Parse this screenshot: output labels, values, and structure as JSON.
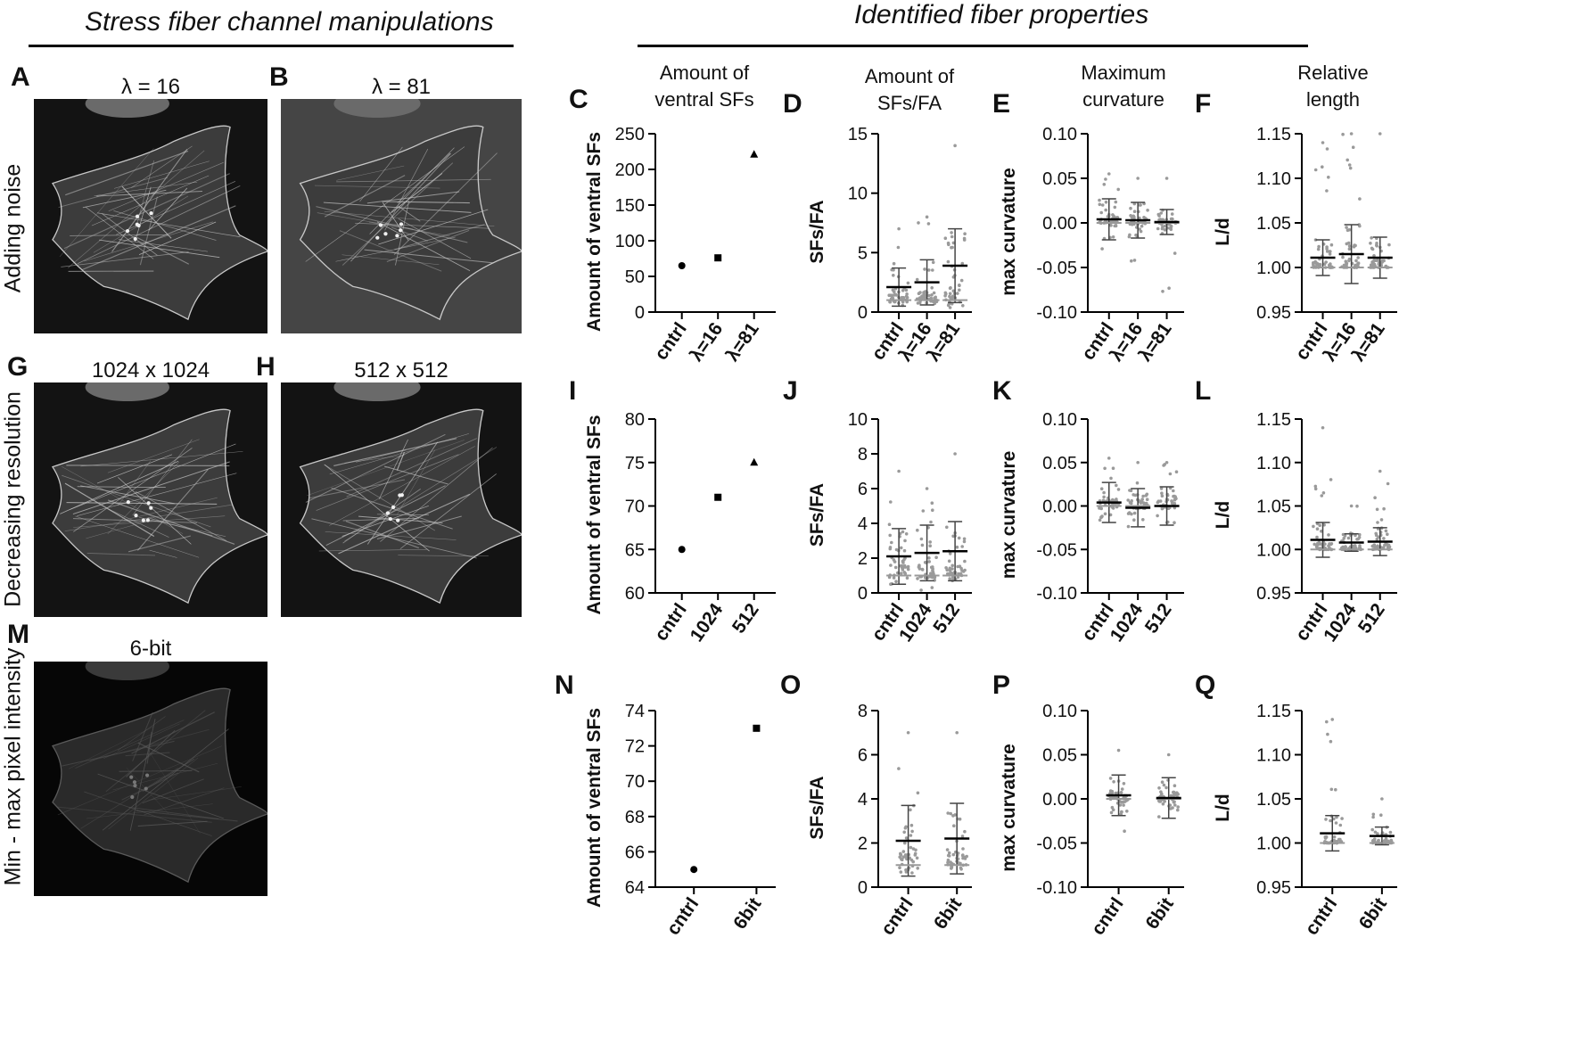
{
  "headers": {
    "left": "Stress fiber channel manipulations",
    "right": "Identified fiber properties"
  },
  "image_panels": [
    {
      "letter": "A",
      "label": "λ = 16"
    },
    {
      "letter": "B",
      "label": "λ = 81"
    },
    {
      "letter": "G",
      "label": "1024 x 1024"
    },
    {
      "letter": "H",
      "label": "512 x 512"
    },
    {
      "letter": "M",
      "label": "6-bit"
    }
  ],
  "row_labels": [
    "Adding noise",
    "Decreasing resolution",
    "Min - max pixel intensity"
  ],
  "column_titles": [
    "Amount of\nventral SFs",
    "Amount of\nSFs/FA",
    "Maximum\ncurvature",
    "Relative\nlength"
  ],
  "colors": {
    "axis": "#000000",
    "scatter_points": "#9a9a9a",
    "mean_line": "#000000",
    "median_line": "#999999",
    "background": "#ffffff",
    "micrograph": "#131313"
  },
  "chart_data": [
    {
      "panel": "C",
      "type": "scatter",
      "ylabel": "Amount of ventral SFs",
      "categories": [
        "cntrl",
        "λ=16",
        "λ=81"
      ],
      "ylim": [
        0,
        250
      ],
      "yticks": [
        0,
        50,
        100,
        150,
        200,
        250
      ],
      "values": [
        65,
        76,
        221
      ],
      "markers": [
        "circle",
        "square",
        "triangle"
      ]
    },
    {
      "panel": "D",
      "type": "scatter",
      "ylabel": "SFs/FA",
      "categories": [
        "cntrl",
        "λ=16",
        "λ=81"
      ],
      "ylim": [
        0,
        15
      ],
      "yticks": [
        0,
        5,
        10,
        15
      ],
      "mean": [
        2.1,
        2.5,
        3.9
      ],
      "sd": [
        1.6,
        1.9,
        3.1
      ],
      "median": [
        1,
        1,
        1
      ],
      "range": [
        [
          0,
          7
        ],
        [
          0,
          8
        ],
        [
          0,
          14
        ]
      ]
    },
    {
      "panel": "E",
      "type": "scatter",
      "ylabel": "max curvature",
      "categories": [
        "cntrl",
        "λ=16",
        "λ=81"
      ],
      "ylim": [
        -0.1,
        0.1
      ],
      "yticks": [
        -0.1,
        -0.05,
        0.0,
        0.05,
        0.1
      ],
      "mean": [
        0.004,
        0.003,
        0.001
      ],
      "sd": [
        0.023,
        0.02,
        0.014
      ],
      "median": [
        0.0,
        0.0,
        0.0
      ],
      "range": [
        [
          -0.05,
          0.055
        ],
        [
          -0.05,
          0.05
        ],
        [
          -0.09,
          0.05
        ]
      ]
    },
    {
      "panel": "F",
      "type": "scatter",
      "ylabel": "L/d",
      "categories": [
        "cntrl",
        "λ=16",
        "λ=81"
      ],
      "ylim": [
        0.95,
        1.15
      ],
      "yticks": [
        0.95,
        1.0,
        1.05,
        1.1,
        1.15
      ],
      "mean": [
        1.011,
        1.015,
        1.011
      ],
      "sd": [
        0.02,
        0.033,
        0.023
      ],
      "median": [
        1.0,
        1.0,
        1.0
      ],
      "range": [
        [
          1.0,
          1.14
        ],
        [
          1.0,
          1.15
        ],
        [
          1.0,
          1.15
        ]
      ]
    },
    {
      "panel": "I",
      "type": "scatter",
      "ylabel": "Amount of ventral SFs",
      "categories": [
        "cntrl",
        "1024",
        "512"
      ],
      "ylim": [
        60,
        80
      ],
      "yticks": [
        60,
        65,
        70,
        75,
        80
      ],
      "values": [
        65,
        71,
        75
      ],
      "markers": [
        "circle",
        "square",
        "triangle"
      ]
    },
    {
      "panel": "J",
      "type": "scatter",
      "ylabel": "SFs/FA",
      "categories": [
        "cntrl",
        "1024",
        "512"
      ],
      "ylim": [
        0,
        10
      ],
      "yticks": [
        0,
        2,
        4,
        6,
        8,
        10
      ],
      "mean": [
        2.1,
        2.3,
        2.4
      ],
      "sd": [
        1.6,
        1.6,
        1.7
      ],
      "median": [
        1,
        1,
        1
      ],
      "range": [
        [
          0,
          7
        ],
        [
          0,
          6
        ],
        [
          0,
          8
        ]
      ]
    },
    {
      "panel": "K",
      "type": "scatter",
      "ylabel": "max curvature",
      "categories": [
        "cntrl",
        "1024",
        "512"
      ],
      "ylim": [
        -0.1,
        0.1
      ],
      "yticks": [
        -0.1,
        -0.05,
        0.0,
        0.05,
        0.1
      ],
      "mean": [
        0.004,
        -0.002,
        0.0
      ],
      "sd": [
        0.023,
        0.022,
        0.022
      ],
      "median": [
        0.0,
        0.0,
        0.0
      ],
      "range": [
        [
          -0.05,
          0.055
        ],
        [
          -0.05,
          0.05
        ],
        [
          -0.05,
          0.05
        ]
      ]
    },
    {
      "panel": "L",
      "type": "scatter",
      "ylabel": "L/d",
      "categories": [
        "cntrl",
        "1024",
        "512"
      ],
      "ylim": [
        0.95,
        1.15
      ],
      "yticks": [
        0.95,
        1.0,
        1.05,
        1.1,
        1.15
      ],
      "mean": [
        1.011,
        1.008,
        1.009
      ],
      "sd": [
        0.02,
        0.01,
        0.016
      ],
      "median": [
        1.0,
        1.0,
        1.0
      ],
      "range": [
        [
          1.0,
          1.14
        ],
        [
          1.0,
          1.05
        ],
        [
          1.0,
          1.09
        ]
      ]
    },
    {
      "panel": "N",
      "type": "scatter",
      "ylabel": "Amount of ventral SFs",
      "categories": [
        "cntrl",
        "6bit"
      ],
      "ylim": [
        64,
        74
      ],
      "yticks": [
        64,
        66,
        68,
        70,
        72,
        74
      ],
      "values": [
        65,
        73
      ],
      "markers": [
        "circle",
        "square"
      ]
    },
    {
      "panel": "O",
      "type": "scatter",
      "ylabel": "SFs/FA",
      "categories": [
        "cntrl",
        "6bit"
      ],
      "ylim": [
        0,
        8
      ],
      "yticks": [
        0,
        2,
        4,
        6,
        8
      ],
      "mean": [
        2.1,
        2.2
      ],
      "sd": [
        1.6,
        1.6
      ],
      "median": [
        1,
        1
      ],
      "range": [
        [
          0,
          7
        ],
        [
          0,
          7
        ]
      ]
    },
    {
      "panel": "P",
      "type": "scatter",
      "ylabel": "max curvature",
      "categories": [
        "cntrl",
        "6bit"
      ],
      "ylim": [
        -0.1,
        0.1
      ],
      "yticks": [
        -0.1,
        -0.05,
        0.0,
        0.05,
        0.1
      ],
      "mean": [
        0.004,
        0.001
      ],
      "sd": [
        0.023,
        0.023
      ],
      "median": [
        0.0,
        0.0
      ],
      "range": [
        [
          -0.05,
          0.055
        ],
        [
          -0.05,
          0.05
        ]
      ]
    },
    {
      "panel": "Q",
      "type": "scatter",
      "ylabel": "L/d",
      "categories": [
        "cntrl",
        "6bit"
      ],
      "ylim": [
        0.95,
        1.15
      ],
      "yticks": [
        0.95,
        1.0,
        1.05,
        1.1,
        1.15
      ],
      "mean": [
        1.011,
        1.008
      ],
      "sd": [
        0.02,
        0.01
      ],
      "median": [
        1.0,
        1.0
      ],
      "range": [
        [
          1.0,
          1.14
        ],
        [
          1.0,
          1.05
        ]
      ]
    }
  ]
}
